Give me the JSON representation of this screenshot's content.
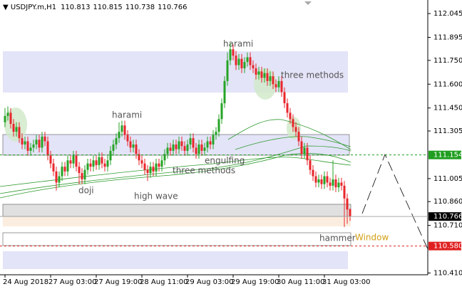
{
  "chart_data": {
    "type": "candlestick",
    "symbol": "USDJPY.m,H1",
    "open": [
      111.36,
      111.4,
      111.42,
      111.35,
      111.3,
      111.33,
      111.26,
      111.22,
      111.24,
      111.18,
      111.2,
      111.22,
      111.25,
      111.2,
      111.27,
      111.24,
      111.15,
      111.1,
      111.05,
      110.98,
      111.02,
      111.08,
      111.05,
      111.12,
      111.1,
      111.15,
      111.08,
      111.04,
      111.0,
      111.06,
      111.1,
      111.08,
      111.12,
      111.09,
      111.14,
      111.1,
      111.08,
      111.12,
      111.18,
      111.22,
      111.26,
      111.3,
      111.34,
      111.28,
      111.24,
      111.2,
      111.22,
      111.16,
      111.12,
      111.1,
      111.06,
      111.04,
      111.08,
      111.05,
      111.1,
      111.08,
      111.12,
      111.16,
      111.2,
      111.18,
      111.22,
      111.19,
      111.24,
      111.21,
      111.18,
      111.22,
      111.26,
      111.2,
      111.16,
      111.22,
      111.18,
      111.2,
      111.24,
      111.22,
      111.28,
      111.3,
      111.38,
      111.48,
      111.62,
      111.75,
      111.82,
      111.78,
      111.72,
      111.76,
      111.7,
      111.74,
      111.77,
      111.72,
      111.7,
      111.66,
      111.68,
      111.64,
      111.67,
      111.62,
      111.65,
      111.6,
      111.58,
      111.62,
      111.55,
      111.48,
      111.42,
      111.38,
      111.33,
      111.3,
      111.24,
      111.16,
      111.2,
      111.12,
      111.06,
      111.02,
      110.98,
      111.0,
      110.97,
      111.02,
      110.98,
      110.96,
      111.0,
      110.95,
      110.98,
      110.96,
      110.88,
      110.813
    ],
    "high": [
      111.45,
      111.46,
      111.45,
      111.38,
      111.36,
      111.36,
      111.29,
      111.27,
      111.27,
      111.23,
      111.25,
      111.28,
      111.28,
      111.3,
      111.3,
      111.27,
      111.18,
      111.13,
      111.08,
      111.05,
      111.11,
      111.11,
      111.15,
      111.15,
      111.18,
      111.18,
      111.11,
      111.07,
      111.09,
      111.13,
      111.13,
      111.15,
      111.15,
      111.17,
      111.17,
      111.13,
      111.15,
      111.21,
      111.25,
      111.29,
      111.36,
      111.37,
      111.37,
      111.31,
      111.27,
      111.25,
      111.25,
      111.19,
      111.15,
      111.13,
      111.09,
      111.11,
      111.11,
      111.13,
      111.13,
      111.15,
      111.19,
      111.23,
      111.23,
      111.25,
      111.25,
      111.27,
      111.27,
      111.24,
      111.25,
      111.29,
      111.29,
      111.23,
      111.25,
      111.25,
      111.23,
      111.27,
      111.27,
      111.31,
      111.33,
      111.41,
      111.51,
      111.65,
      111.8,
      111.86,
      111.85,
      111.81,
      111.79,
      111.79,
      111.77,
      111.8,
      111.8,
      111.75,
      111.73,
      111.71,
      111.71,
      111.7,
      111.7,
      111.68,
      111.68,
      111.63,
      111.65,
      111.65,
      111.58,
      111.51,
      111.45,
      111.41,
      111.36,
      111.33,
      111.27,
      111.23,
      111.23,
      111.15,
      111.09,
      111.05,
      111.03,
      111.03,
      111.05,
      111.05,
      111.01,
      111.12,
      111.03,
      111.01,
      111.01,
      110.99,
      110.91,
      110.815
    ],
    "low": [
      111.33,
      111.37,
      111.32,
      111.27,
      111.27,
      111.23,
      111.19,
      111.19,
      111.15,
      111.15,
      111.17,
      111.19,
      111.17,
      111.17,
      111.21,
      111.12,
      111.07,
      111.02,
      110.93,
      110.95,
      110.99,
      111.02,
      111.02,
      111.07,
      111.07,
      111.05,
      110.97,
      110.97,
      110.97,
      111.03,
      111.05,
      111.05,
      111.06,
      111.06,
      111.07,
      111.05,
      111.05,
      111.09,
      111.15,
      111.19,
      111.23,
      111.27,
      111.25,
      111.21,
      111.17,
      111.17,
      111.13,
      111.09,
      111.07,
      111.03,
      110.99,
      111.01,
      111.02,
      111.02,
      111.05,
      111.05,
      111.09,
      111.13,
      111.15,
      111.15,
      111.16,
      111.16,
      111.18,
      111.15,
      111.15,
      111.19,
      111.17,
      111.13,
      111.13,
      111.15,
      111.15,
      111.17,
      111.19,
      111.19,
      111.25,
      111.27,
      111.35,
      111.45,
      111.59,
      111.72,
      111.75,
      111.69,
      111.69,
      111.67,
      111.67,
      111.71,
      111.69,
      111.67,
      111.63,
      111.63,
      111.61,
      111.61,
      111.59,
      111.59,
      111.57,
      111.55,
      111.55,
      111.52,
      111.45,
      111.39,
      111.35,
      111.3,
      111.27,
      111.21,
      111.13,
      111.13,
      111.09,
      111.03,
      110.99,
      110.95,
      110.95,
      110.94,
      110.94,
      110.95,
      110.93,
      110.93,
      110.92,
      110.92,
      110.93,
      110.7,
      110.72,
      110.738
    ],
    "close": [
      111.4,
      111.42,
      111.35,
      111.3,
      111.33,
      111.26,
      111.22,
      111.24,
      111.18,
      111.2,
      111.22,
      111.25,
      111.2,
      111.27,
      111.24,
      111.15,
      111.1,
      111.05,
      110.98,
      111.02,
      111.08,
      111.05,
      111.12,
      111.1,
      111.15,
      111.08,
      111.04,
      111.0,
      111.06,
      111.1,
      111.08,
      111.12,
      111.09,
      111.14,
      111.1,
      111.08,
      111.12,
      111.18,
      111.22,
      111.26,
      111.3,
      111.34,
      111.28,
      111.24,
      111.2,
      111.22,
      111.16,
      111.12,
      111.1,
      111.06,
      111.04,
      111.08,
      111.05,
      111.1,
      111.08,
      111.12,
      111.16,
      111.2,
      111.18,
      111.22,
      111.19,
      111.24,
      111.21,
      111.18,
      111.22,
      111.26,
      111.2,
      111.16,
      111.22,
      111.18,
      111.2,
      111.24,
      111.22,
      111.28,
      111.3,
      111.38,
      111.48,
      111.62,
      111.75,
      111.82,
      111.78,
      111.72,
      111.76,
      111.7,
      111.74,
      111.77,
      111.72,
      111.7,
      111.66,
      111.68,
      111.64,
      111.67,
      111.62,
      111.65,
      111.6,
      111.58,
      111.62,
      111.55,
      111.48,
      111.42,
      111.38,
      111.33,
      111.3,
      111.24,
      111.16,
      111.2,
      111.12,
      111.06,
      111.02,
      110.98,
      111.0,
      110.97,
      111.02,
      110.98,
      110.96,
      111.0,
      110.95,
      110.98,
      110.96,
      110.88,
      110.81,
      110.766
    ],
    "bull_color": "#26a326",
    "bear_color": "#e8262c",
    "xlim": [
      -1.75,
      148.25
    ],
    "xticks": [
      {
        "value": 0,
        "label": "24 Aug 2018"
      },
      {
        "value": 16,
        "label": "27 Aug 03:00"
      },
      {
        "value": 32,
        "label": "27 Aug 19:00"
      },
      {
        "value": 48,
        "label": "28 Aug 11:00"
      },
      {
        "value": 64,
        "label": "29 Aug 03:00"
      },
      {
        "value": 80,
        "label": "29 Aug 19:00"
      },
      {
        "value": 96,
        "label": "30 Aug 11:00"
      },
      {
        "value": 112,
        "label": "31 Aug 03:00"
      }
    ],
    "ylim": [
      110.399,
      112.117
    ],
    "yticks": [
      112.045,
      111.895,
      {
        "value": 111.75,
        "label": "111.750"
      },
      {
        "value": 111.6,
        "label": "111.600"
      },
      {
        "value": 111.45,
        "label": "111.450"
      },
      111.305,
      111.005,
      {
        "value": 110.86,
        "label": "110.860"
      },
      {
        "value": 110.71,
        "label": "110.710"
      },
      {
        "value": 110.41,
        "label": "110.410"
      }
    ],
    "price_lines": [
      {
        "value": 111.154,
        "color": "#1f9e1f"
      },
      {
        "value": 110.58,
        "label": "110.580",
        "color": "#e02020"
      }
    ],
    "annotations": [
      "harami",
      "three methods",
      "harami",
      "engulfing",
      "three methods",
      "doji",
      "high wave",
      "hammer",
      "Window"
    ]
  }
}
